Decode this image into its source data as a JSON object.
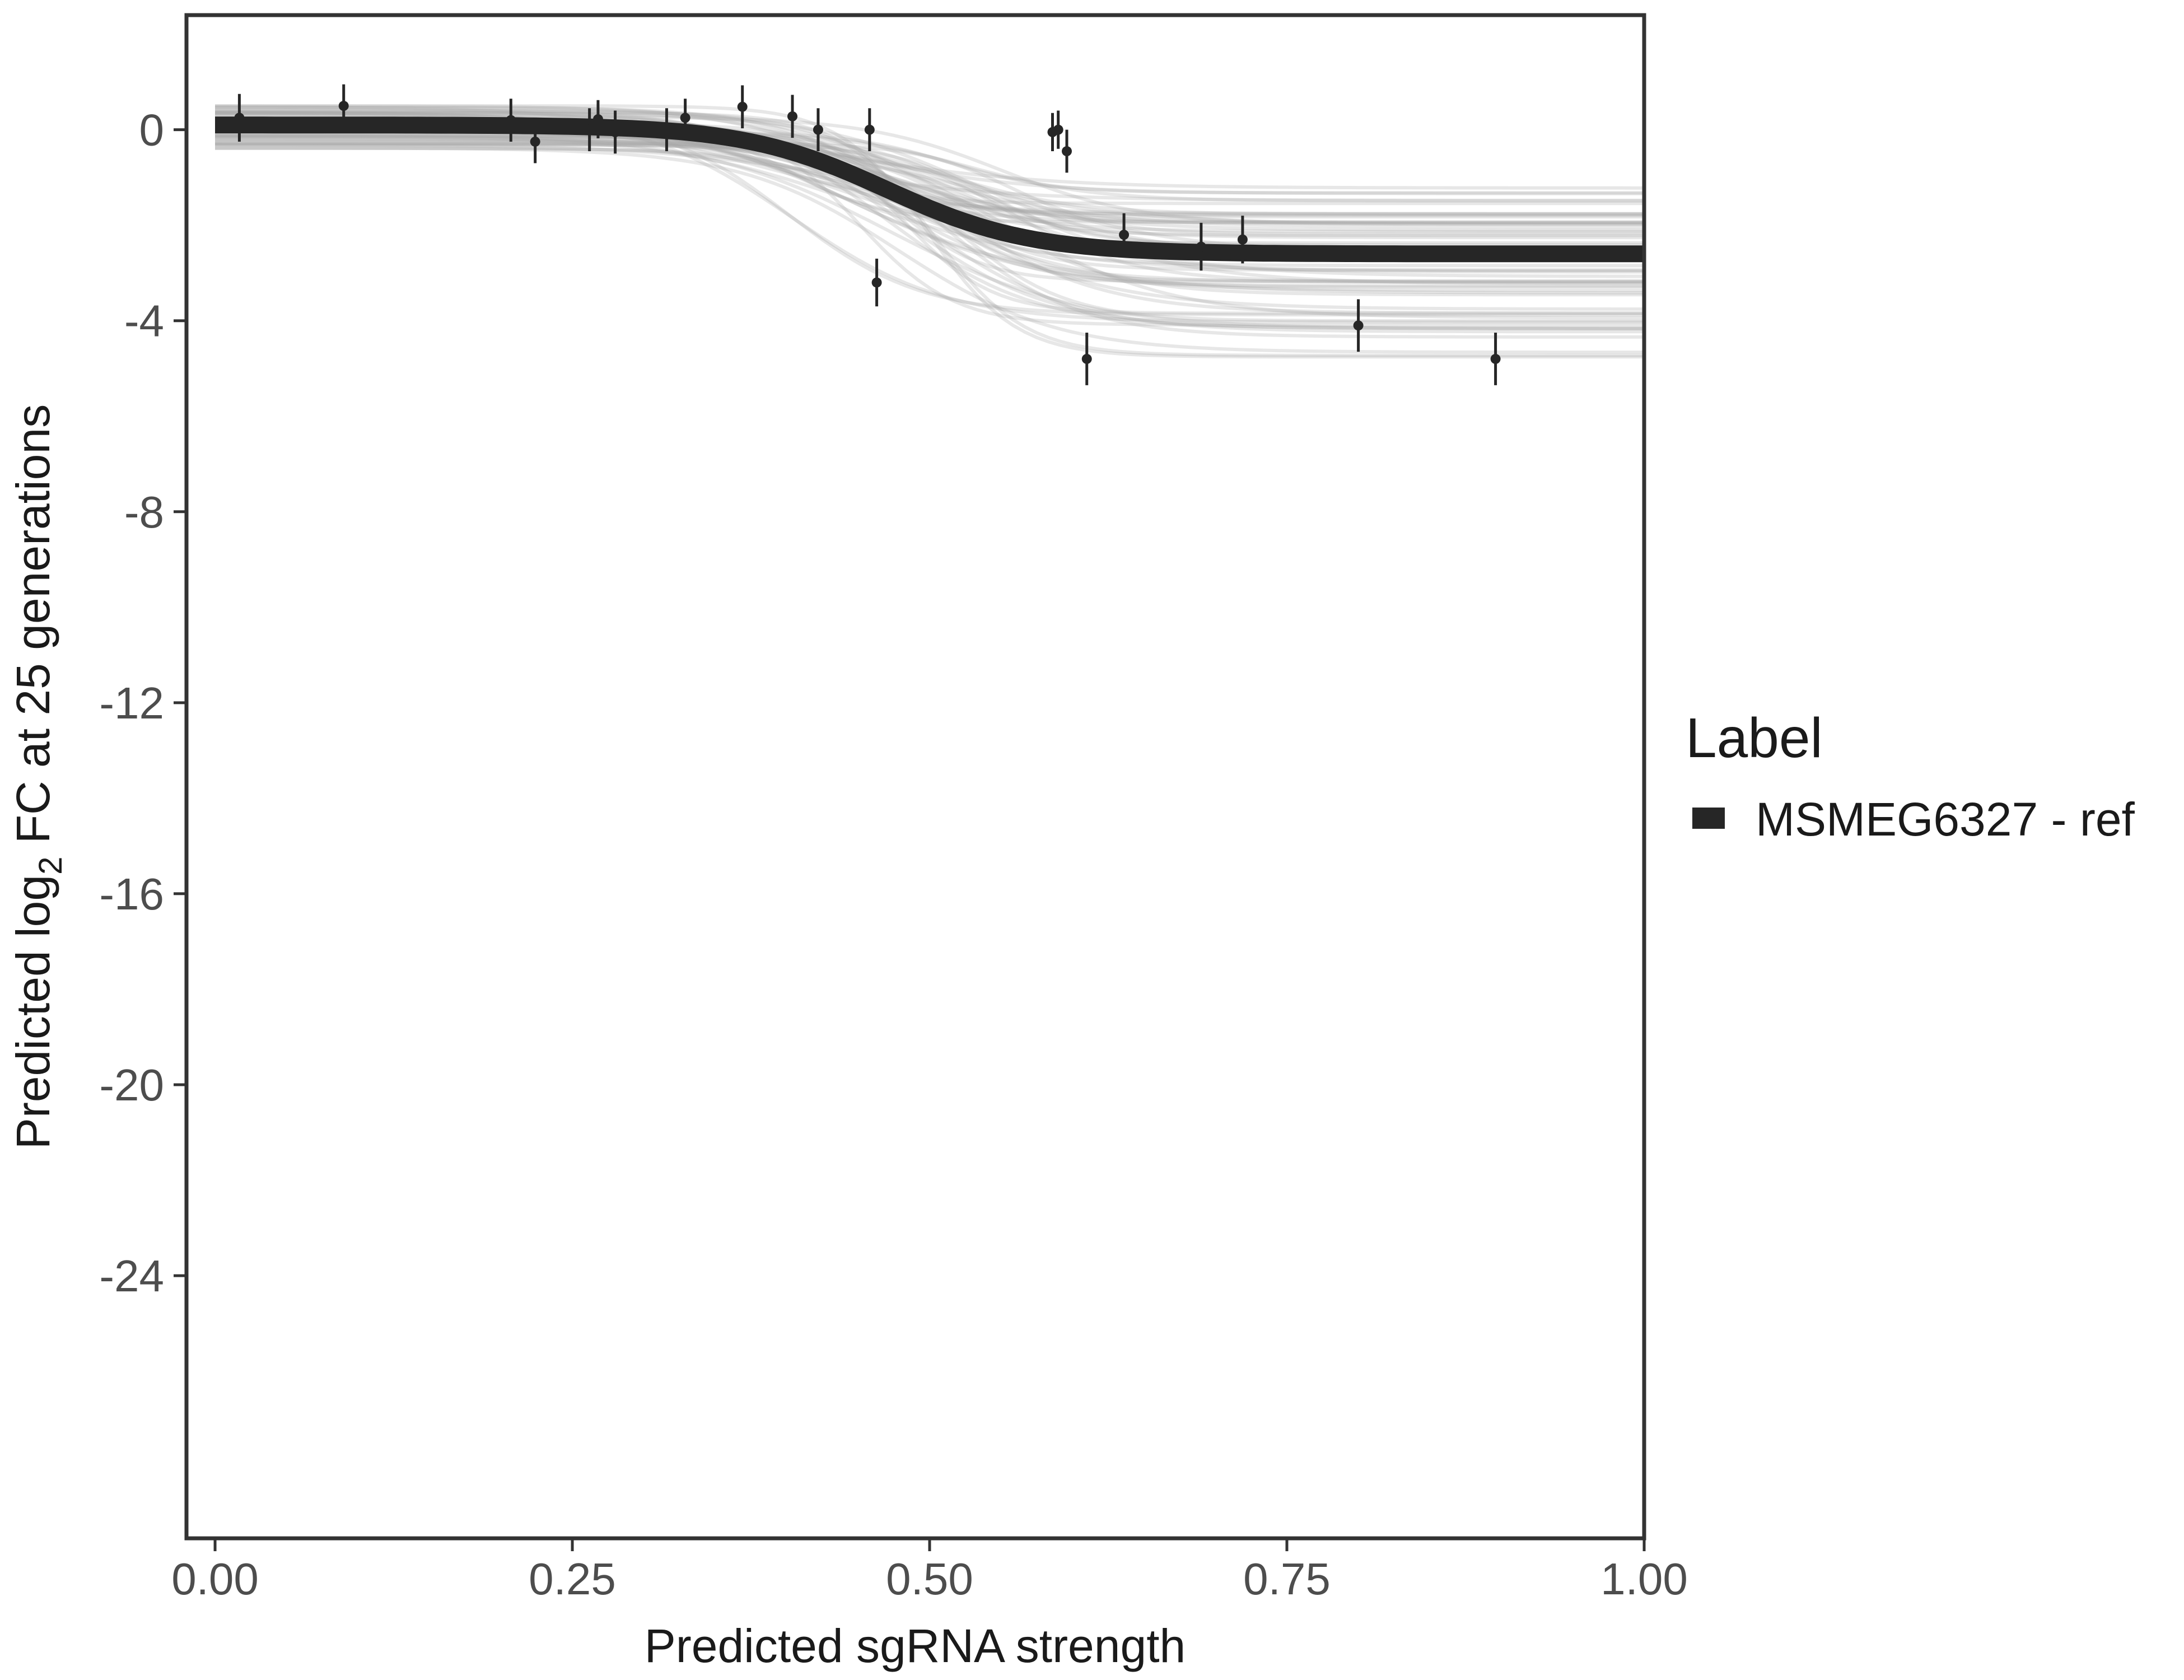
{
  "chart_data": {
    "type": "line",
    "title": "",
    "xlabel": "Predicted sgRNA strength",
    "ylabel": {
      "prefix": "Predicted  log",
      "subscript": "2",
      "suffix": " FC at 25 generations"
    },
    "xlim": [
      -0.02,
      1.0
    ],
    "ylim": [
      -29.5,
      2.4
    ],
    "x_ticks": [
      0.0,
      0.25,
      0.5,
      0.75,
      1.0
    ],
    "x_tick_labels": [
      "0.00",
      "0.25",
      "0.50",
      "0.75",
      "1.00"
    ],
    "y_ticks": [
      0,
      -4,
      -8,
      -12,
      -16,
      -20,
      -24
    ],
    "y_tick_labels": [
      "0",
      "-4",
      "-8",
      "-12",
      "-16",
      "-20",
      "-24"
    ],
    "grid": false,
    "legend": {
      "title": "Label",
      "position": "right",
      "entries": [
        {
          "label": "MSMEG6327 - ref",
          "color": "#262626"
        }
      ]
    },
    "fit_curve": {
      "name": "MSMEG6327 - ref",
      "model": "logistic",
      "x_range": [
        0.0,
        1.0
      ],
      "y_top": 0.1,
      "y_bottom": -2.6,
      "midpoint": 0.47,
      "scale": 0.05,
      "color": "#262626"
    },
    "posterior_band": {
      "color": "#aaaaaa",
      "n_draws": 60,
      "y_top_range": [
        -0.4,
        0.5
      ],
      "y_bottom_range": [
        -4.8,
        -1.1
      ],
      "midpoint_range": [
        0.38,
        0.56
      ],
      "scale_range": [
        0.03,
        0.07
      ]
    },
    "series": [
      {
        "name": "observed",
        "color": "#262626",
        "points": [
          {
            "x": 0.017,
            "y": 0.25,
            "err": 0.5
          },
          {
            "x": 0.09,
            "y": 0.5,
            "err": 0.45
          },
          {
            "x": 0.207,
            "y": 0.2,
            "err": 0.45
          },
          {
            "x": 0.224,
            "y": -0.25,
            "err": 0.45
          },
          {
            "x": 0.262,
            "y": 0.0,
            "err": 0.45
          },
          {
            "x": 0.268,
            "y": 0.22,
            "err": 0.4
          },
          {
            "x": 0.28,
            "y": -0.05,
            "err": 0.45
          },
          {
            "x": 0.316,
            "y": 0.0,
            "err": 0.45
          },
          {
            "x": 0.329,
            "y": 0.25,
            "err": 0.4
          },
          {
            "x": 0.369,
            "y": 0.48,
            "err": 0.45
          },
          {
            "x": 0.404,
            "y": 0.28,
            "err": 0.45
          },
          {
            "x": 0.422,
            "y": 0.0,
            "err": 0.45
          },
          {
            "x": 0.458,
            "y": 0.0,
            "err": 0.45
          },
          {
            "x": 0.463,
            "y": -3.2,
            "err": 0.5
          },
          {
            "x": 0.586,
            "y": -0.05,
            "err": 0.4
          },
          {
            "x": 0.59,
            "y": 0.0,
            "err": 0.4
          },
          {
            "x": 0.596,
            "y": -0.45,
            "err": 0.45
          },
          {
            "x": 0.61,
            "y": -4.8,
            "err": 0.55
          },
          {
            "x": 0.636,
            "y": -2.2,
            "err": 0.45
          },
          {
            "x": 0.69,
            "y": -2.45,
            "err": 0.5
          },
          {
            "x": 0.719,
            "y": -2.3,
            "err": 0.5
          },
          {
            "x": 0.8,
            "y": -4.1,
            "err": 0.55
          },
          {
            "x": 0.896,
            "y": -4.8,
            "err": 0.55
          }
        ]
      }
    ]
  }
}
